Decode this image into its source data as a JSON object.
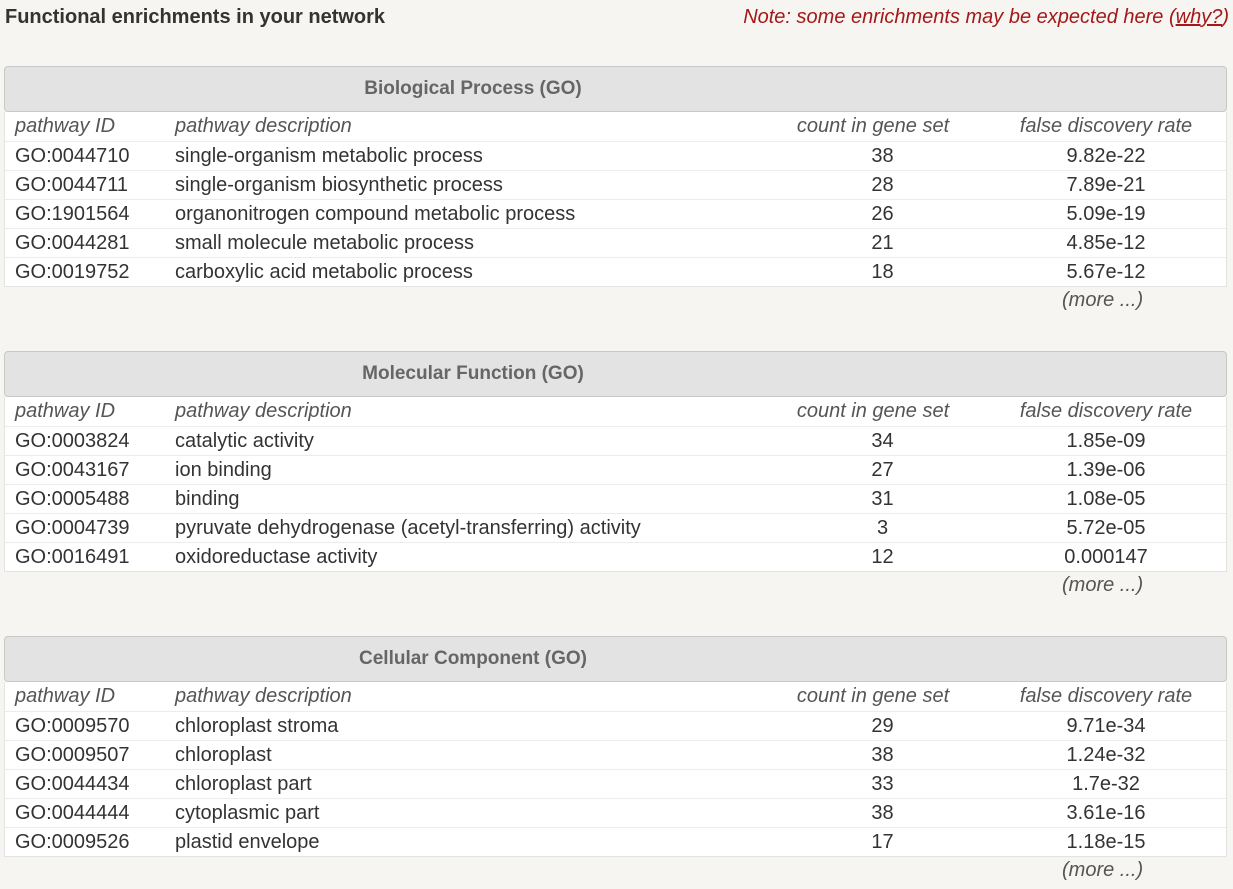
{
  "header": {
    "title": "Functional enrichments in your network",
    "note_prefix": "Note: some enrichments may be expected here (",
    "note_link": "why?",
    "note_suffix": ")"
  },
  "columns": {
    "id": "pathway ID",
    "description": "pathway description",
    "count": "count in gene set",
    "fdr": "false discovery rate"
  },
  "more_label": "(more ...)",
  "sections": [
    {
      "title": "Biological Process (GO)",
      "rows": [
        {
          "id": "GO:0044710",
          "description": "single-organism metabolic process",
          "count": "38",
          "fdr": "9.82e-22"
        },
        {
          "id": "GO:0044711",
          "description": "single-organism biosynthetic process",
          "count": "28",
          "fdr": "7.89e-21"
        },
        {
          "id": "GO:1901564",
          "description": "organonitrogen compound metabolic process",
          "count": "26",
          "fdr": "5.09e-19"
        },
        {
          "id": "GO:0044281",
          "description": "small molecule metabolic process",
          "count": "21",
          "fdr": "4.85e-12"
        },
        {
          "id": "GO:0019752",
          "description": "carboxylic acid metabolic process",
          "count": "18",
          "fdr": "5.67e-12"
        }
      ]
    },
    {
      "title": "Molecular Function (GO)",
      "rows": [
        {
          "id": "GO:0003824",
          "description": "catalytic activity",
          "count": "34",
          "fdr": "1.85e-09"
        },
        {
          "id": "GO:0043167",
          "description": "ion binding",
          "count": "27",
          "fdr": "1.39e-06"
        },
        {
          "id": "GO:0005488",
          "description": "binding",
          "count": "31",
          "fdr": "1.08e-05"
        },
        {
          "id": "GO:0004739",
          "description": "pyruvate dehydrogenase (acetyl-transferring) activity",
          "count": "3",
          "fdr": "5.72e-05"
        },
        {
          "id": "GO:0016491",
          "description": "oxidoreductase activity",
          "count": "12",
          "fdr": "0.000147"
        }
      ]
    },
    {
      "title": "Cellular Component (GO)",
      "rows": [
        {
          "id": "GO:0009570",
          "description": "chloroplast stroma",
          "count": "29",
          "fdr": "9.71e-34"
        },
        {
          "id": "GO:0009507",
          "description": "chloroplast",
          "count": "38",
          "fdr": "1.24e-32"
        },
        {
          "id": "GO:0044434",
          "description": "chloroplast part",
          "count": "33",
          "fdr": "1.7e-32"
        },
        {
          "id": "GO:0044444",
          "description": "cytoplasmic part",
          "count": "38",
          "fdr": "3.61e-16"
        },
        {
          "id": "GO:0009526",
          "description": "plastid envelope",
          "count": "17",
          "fdr": "1.18e-15"
        }
      ]
    }
  ]
}
